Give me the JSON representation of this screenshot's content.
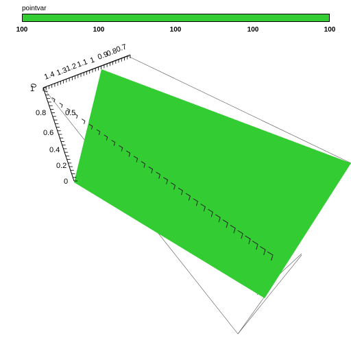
{
  "legend": {
    "title": "pointvar",
    "color": "#33cc33",
    "ticks": [
      "100",
      "100",
      "100",
      "100",
      "100"
    ]
  },
  "axes": {
    "y_ticks": [
      "0",
      "0.2",
      "0.4",
      "0.6",
      "0.8",
      "1"
    ],
    "top_ticks": [
      "1.4",
      "1.3",
      "1.2",
      "1.1",
      "1",
      "0.9",
      "0.8",
      "0.7"
    ],
    "corner_label": "0",
    "inner_label": "0.5"
  },
  "surface_color": "#33cc33",
  "outline_color": "#555555"
}
